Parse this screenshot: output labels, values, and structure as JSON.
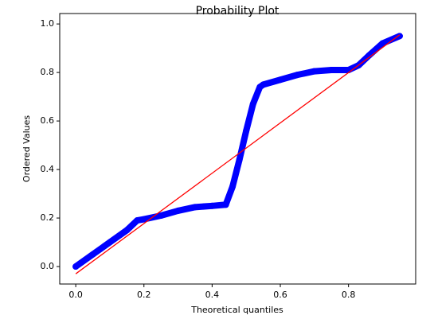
{
  "chart_data": {
    "type": "scatter",
    "title": "Probability Plot",
    "xlabel": "Theoretical quantiles",
    "ylabel": "Ordered Values",
    "xlim": [
      -0.047,
      0.997
    ],
    "ylim": [
      -0.072,
      1.043
    ],
    "xticks": [
      {
        "value": 0,
        "label": "0.0"
      },
      0.2,
      0.4,
      0.6,
      0.8
    ],
    "yticks": [
      {
        "value": 0,
        "label": "0.0"
      },
      0.2,
      0.4,
      0.6,
      0.8,
      {
        "value": 1,
        "label": "1.0"
      }
    ],
    "series": [
      {
        "color": "#0000ff",
        "style": "markers",
        "x": [
          0,
          0.05,
          0.1,
          0.15,
          0.18,
          0.2,
          0.25,
          0.3,
          0.35,
          0.4,
          0.44,
          0.46,
          0.48,
          0.5,
          0.52,
          0.54,
          0.55,
          0.6,
          0.65,
          0.7,
          0.75,
          0.8,
          0.83,
          0.86,
          0.9,
          0.95
        ],
        "values": [
          0,
          0.05,
          0.1,
          0.15,
          0.19,
          0.195,
          0.21,
          0.23,
          0.245,
          0.25,
          0.255,
          0.33,
          0.44,
          0.56,
          0.67,
          0.74,
          0.75,
          0.77,
          0.79,
          0.805,
          0.81,
          0.81,
          0.83,
          0.87,
          0.92,
          0.95
        ]
      },
      {
        "color": "#ff0000",
        "style": "line",
        "x": [
          0,
          0.95
        ],
        "values": [
          -0.03,
          0.955
        ]
      }
    ]
  }
}
